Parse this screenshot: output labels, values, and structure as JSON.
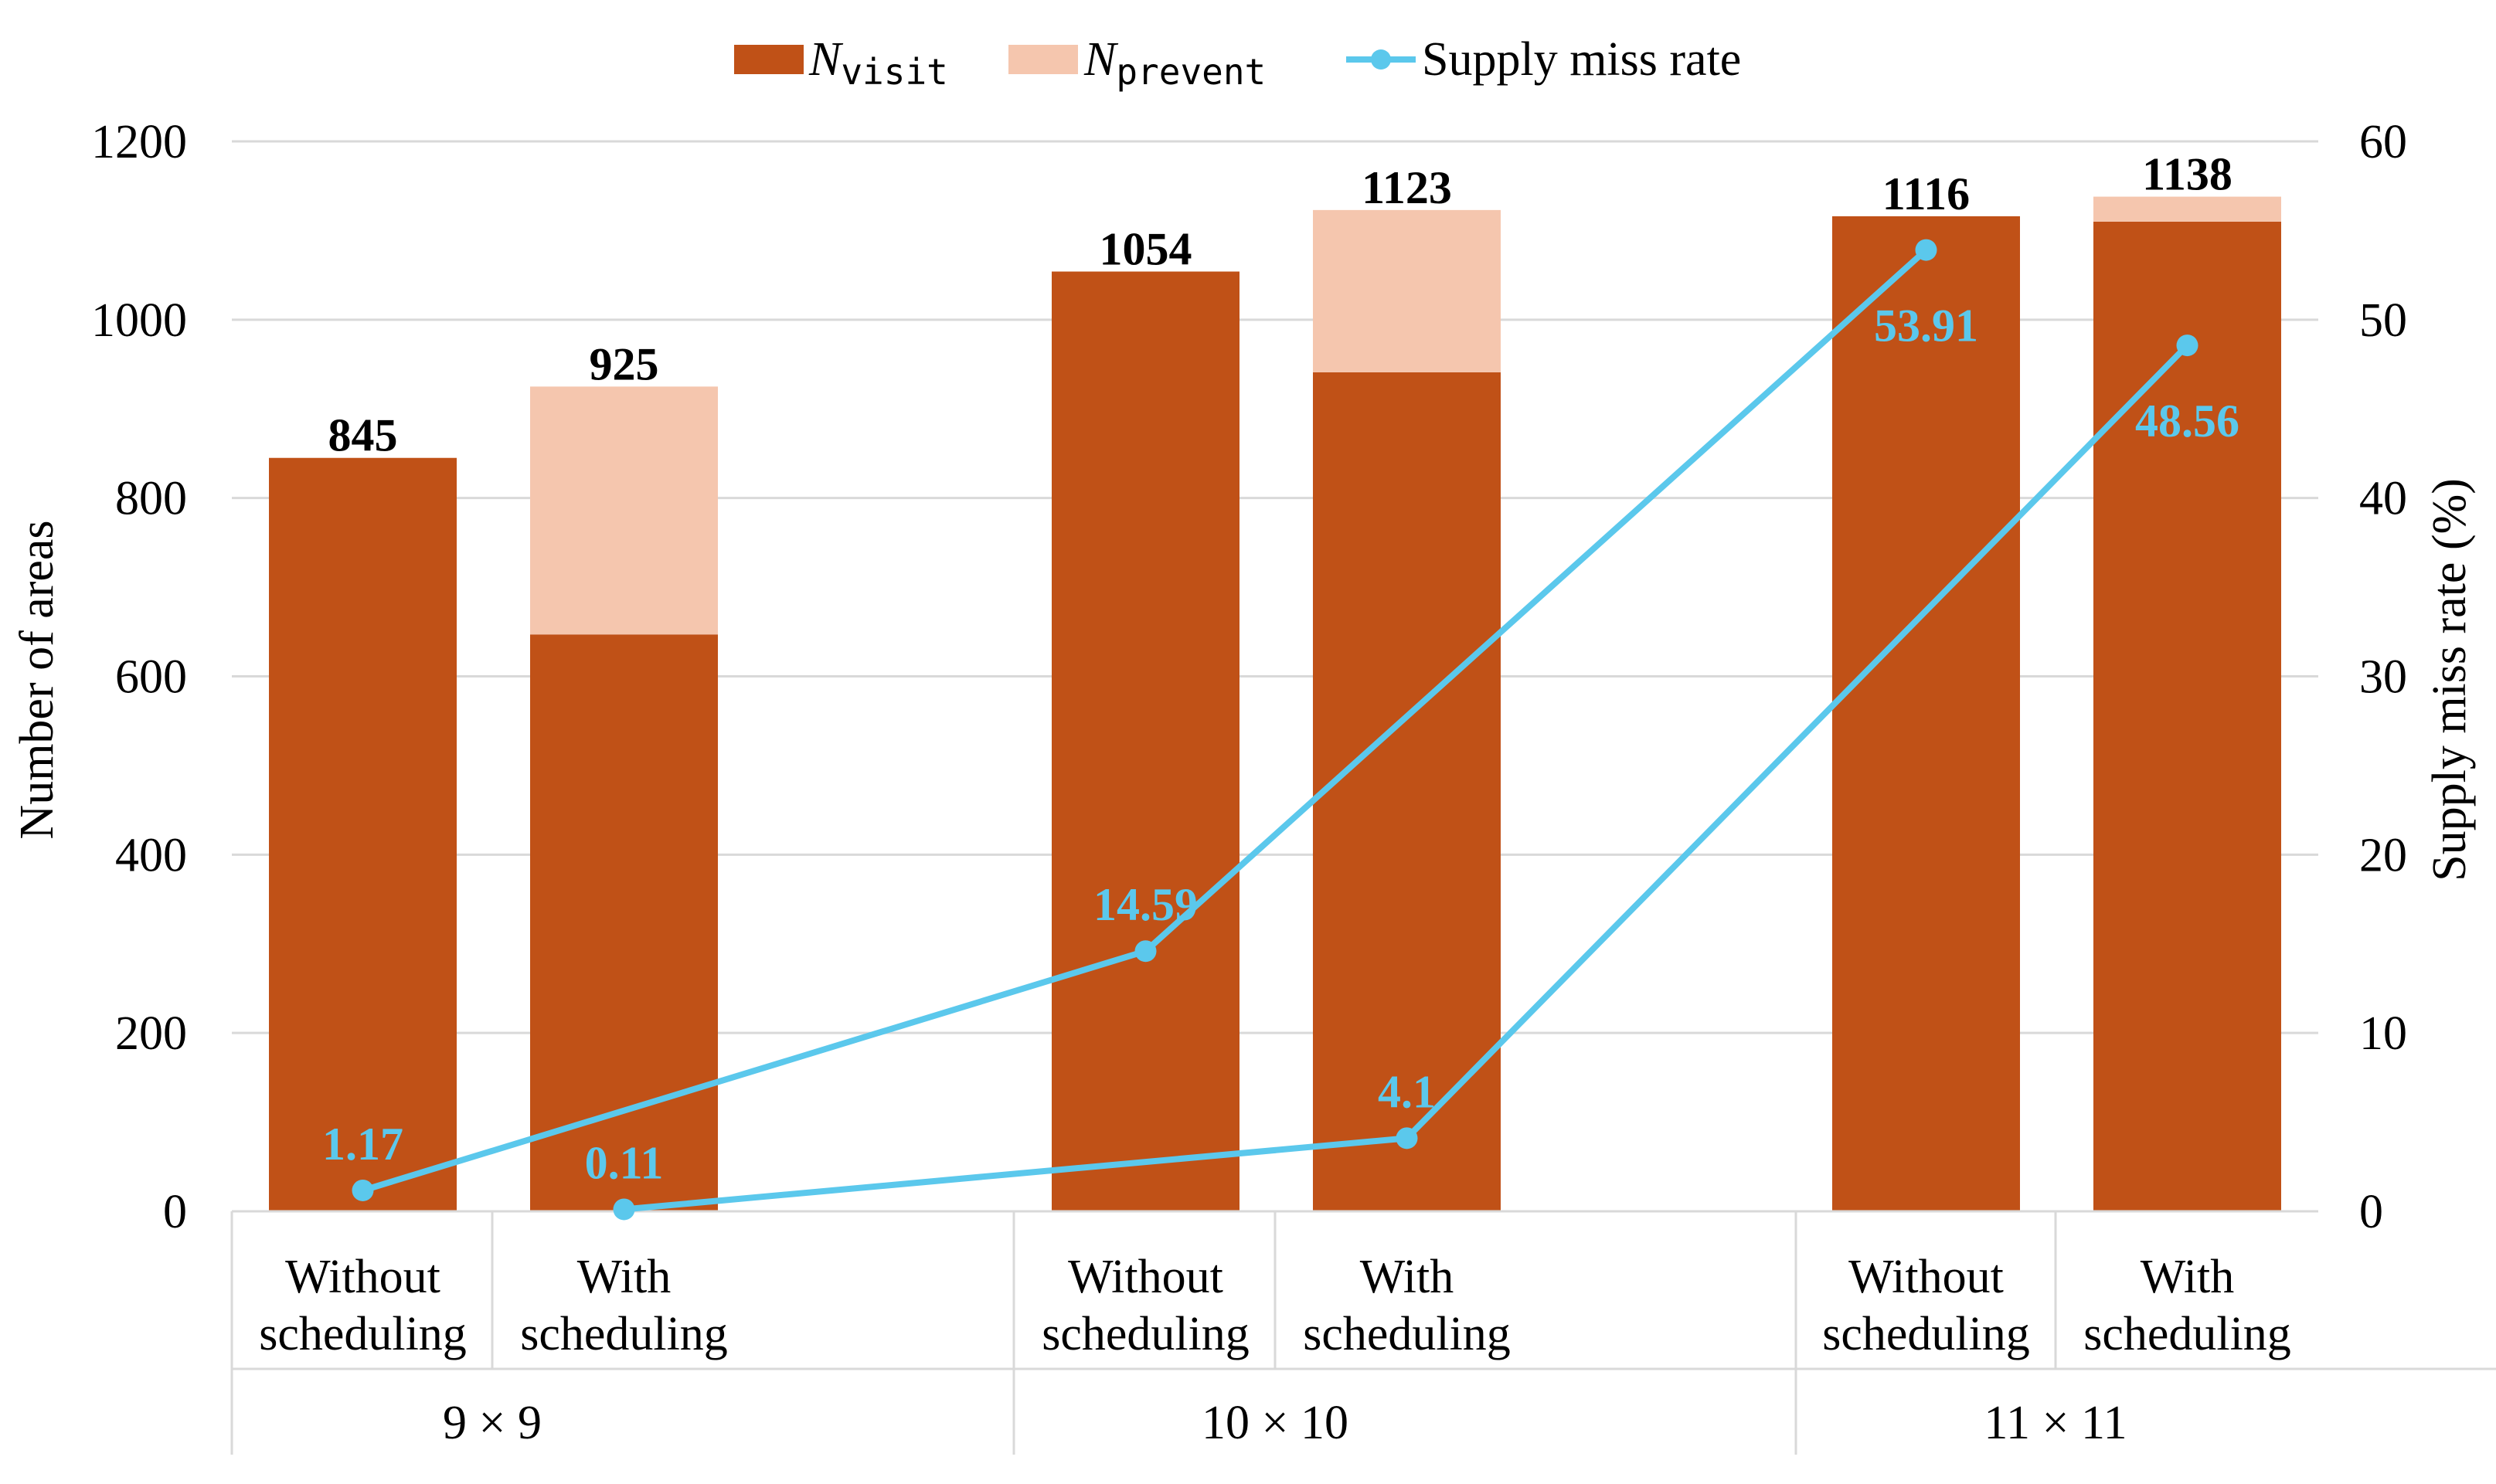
{
  "chart_data": {
    "type": "bar",
    "stacked": true,
    "groups": [
      "9 × 9",
      "10 × 10",
      "11 × 11"
    ],
    "bar_labels": [
      [
        "Without",
        "scheduling"
      ],
      [
        "With",
        "scheduling"
      ]
    ],
    "bars": [
      {
        "group": "9 × 9",
        "label": "Without scheduling",
        "visit": 845,
        "prevent": 0,
        "total": 845,
        "total_label": "845"
      },
      {
        "group": "9 × 9",
        "label": "With scheduling",
        "visit": 647,
        "prevent": 278,
        "total": 925,
        "total_label": "925"
      },
      {
        "group": "10 × 10",
        "label": "Without scheduling",
        "visit": 1054,
        "prevent": 0,
        "total": 1054,
        "total_label": "1054"
      },
      {
        "group": "10 × 10",
        "label": "With scheduling",
        "visit": 941,
        "prevent": 182,
        "total": 1123,
        "total_label": "1123"
      },
      {
        "group": "11 × 11",
        "label": "Without scheduling",
        "visit": 1116,
        "prevent": 0,
        "total": 1116,
        "total_label": "1116"
      },
      {
        "group": "11 × 11",
        "label": "With scheduling",
        "visit": 1110,
        "prevent": 28,
        "total": 1138,
        "total_label": "1138"
      }
    ],
    "line_series": [
      {
        "name": "Without scheduling",
        "values": [
          1.17,
          14.59,
          53.91
        ],
        "labels": [
          "1.17",
          "14.59",
          "53.91"
        ]
      },
      {
        "name": "With scheduling",
        "values": [
          0.11,
          4.1,
          48.56
        ],
        "labels": [
          "0.11",
          "4.1",
          "48.56"
        ]
      }
    ],
    "legend": {
      "visit_main": "N",
      "visit_sub": "visit",
      "prevent_main": "N",
      "prevent_sub": "prevent",
      "line": "Supply miss rate",
      "placement": "top-center"
    },
    "y_left": {
      "label": "Number of areas",
      "min": 0,
      "max": 1200,
      "ticks": [
        "0",
        "200",
        "400",
        "600",
        "800",
        "1000",
        "1200"
      ]
    },
    "y_right": {
      "label": "Supply miss rate (%)",
      "min": 0,
      "max": 60,
      "ticks": [
        "0",
        "10",
        "20",
        "30",
        "40",
        "50",
        "60"
      ]
    },
    "colors": {
      "visit": "#C05117",
      "prevent": "#F5C6AE",
      "line": "#5BC8EC",
      "grid": "#D9D9D9"
    }
  }
}
